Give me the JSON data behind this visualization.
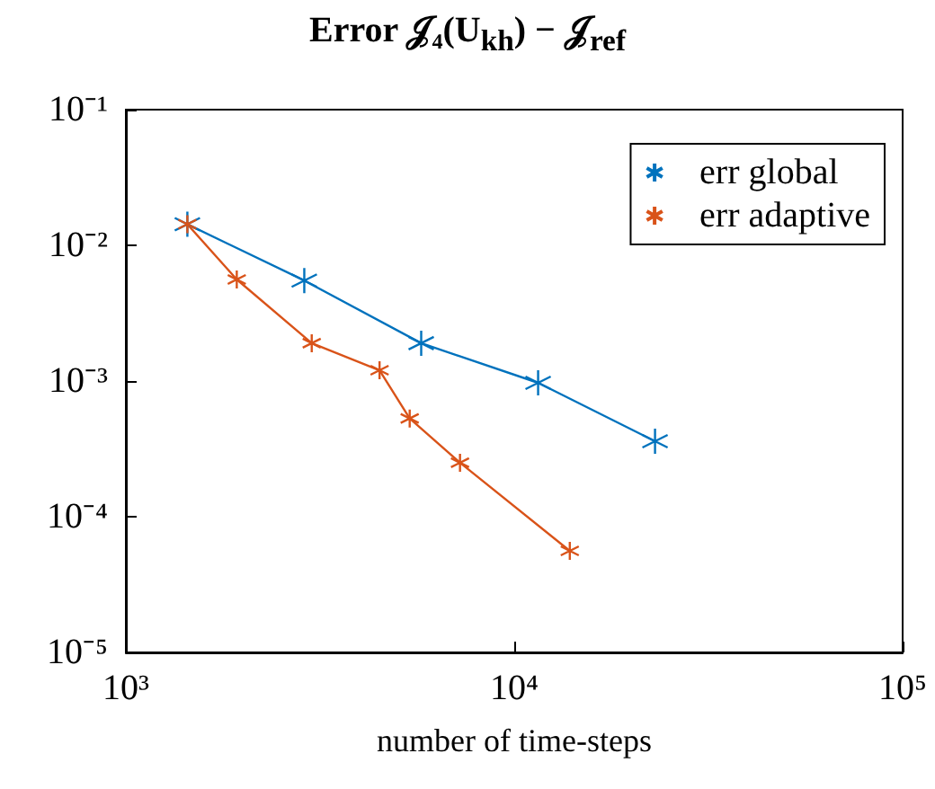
{
  "chart_data": {
    "type": "line",
    "title": "Error 𝒥₄(U$_{kh}$) − 𝒥$_{ref}$",
    "xlabel": "number of time-steps",
    "log": "xy",
    "xlim": [
      1000,
      100000
    ],
    "xticks": [
      {
        "value": 1000,
        "label": "10³"
      },
      {
        "value": 10000,
        "label": "10⁴"
      },
      {
        "value": 100000,
        "label": "10⁵"
      }
    ],
    "ylim": [
      1e-05,
      0.1
    ],
    "yticks": [
      {
        "value": 1e-05,
        "label": "10⁻⁵"
      },
      {
        "value": 0.0001,
        "label": "10⁻⁴"
      },
      {
        "value": 0.001,
        "label": "10⁻³"
      },
      {
        "value": 0.01,
        "label": "10⁻²"
      },
      {
        "value": 0.1,
        "label": "10⁻¹"
      }
    ],
    "grid": false,
    "legend": "top right",
    "marker": "cross",
    "line_style": "solid",
    "series": [
      {
        "name": "err global",
        "color": "#0072bd",
        "x": [
          1440,
          2880,
          5760,
          11520,
          23040
        ],
        "values": [
          0.0143,
          0.0055,
          0.0019,
          0.00097,
          0.00036
        ]
      },
      {
        "name": "err adaptive",
        "color": "#d95319",
        "x": [
          1440,
          1930,
          3010,
          4500,
          5380,
          7250,
          13900
        ],
        "values": [
          0.0143,
          0.0056,
          0.0019,
          0.0012,
          0.00053,
          0.00025,
          5.6e-05
        ]
      }
    ]
  }
}
